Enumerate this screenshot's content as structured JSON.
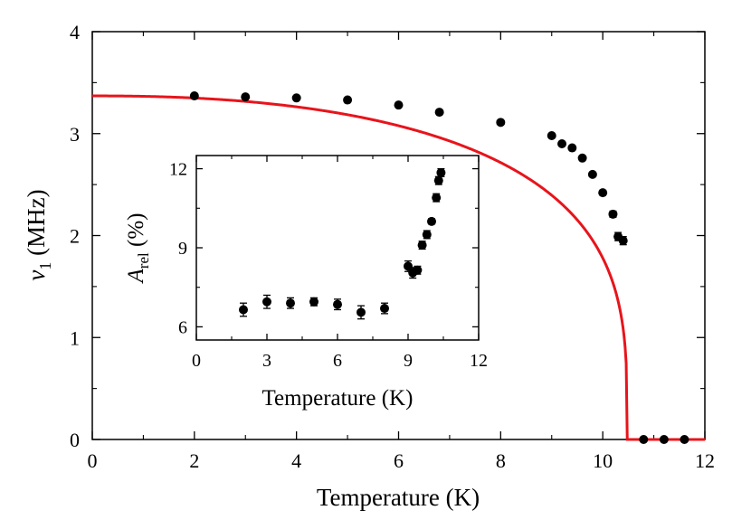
{
  "chart_data": [
    {
      "type": "scatter",
      "xlabel": "Temperature (K)",
      "ylabel_symbol": "ν",
      "ylabel_subscript": "1",
      "ylabel_unit": " (MHz)",
      "xlim": [
        0,
        12
      ],
      "ylim": [
        0,
        4
      ],
      "xticks": [
        0,
        2,
        4,
        6,
        8,
        10,
        12
      ],
      "yticks": [
        0,
        1,
        2,
        3,
        4
      ],
      "grid": false,
      "series": [
        {
          "type": "scatter",
          "color": "#000000",
          "x": [
            2.0,
            3.0,
            4.0,
            5.0,
            6.0,
            6.8,
            8.0,
            9.0,
            9.2,
            9.4,
            9.6,
            9.8,
            10.0,
            10.2,
            10.3,
            10.4,
            10.8,
            11.2,
            11.6
          ],
          "y": [
            3.37,
            3.36,
            3.35,
            3.33,
            3.28,
            3.21,
            3.11,
            2.98,
            2.9,
            2.86,
            2.76,
            2.6,
            2.42,
            2.21,
            1.99,
            1.95,
            0.0,
            0.0,
            0.0
          ],
          "yerr": [
            0.01,
            0.01,
            0.01,
            0.01,
            0.01,
            0.01,
            0.01,
            0.01,
            0.01,
            0.01,
            0.02,
            0.02,
            0.02,
            0.03,
            0.04,
            0.04,
            0.0,
            0.0,
            0.0
          ]
        },
        {
          "type": "line",
          "color": "#e8141b",
          "fit": {
            "nu0": 3.37,
            "Tc": 10.48,
            "alpha": 2.3,
            "beta": 0.28,
            "T_end": 12.0
          }
        }
      ]
    },
    {
      "type": "scatter",
      "inset": true,
      "xlabel": "Temperature (K)",
      "ylabel_symbol": "A",
      "ylabel_subscript": "rel",
      "ylabel_unit": " (%)",
      "xlim": [
        0,
        12
      ],
      "ylim": [
        5.5,
        12.5
      ],
      "xticks": [
        0,
        3,
        6,
        9,
        12
      ],
      "yticks": [
        6,
        9,
        12
      ],
      "grid": false,
      "series": [
        {
          "type": "scatter",
          "color": "#000000",
          "x": [
            2.0,
            3.0,
            4.0,
            5.0,
            6.0,
            7.0,
            8.0,
            9.0,
            9.2,
            9.4,
            9.6,
            9.8,
            10.0,
            10.2,
            10.3,
            10.4
          ],
          "y": [
            6.65,
            6.95,
            6.9,
            6.95,
            6.85,
            6.55,
            6.7,
            8.3,
            8.05,
            8.15,
            9.1,
            9.5,
            10.0,
            10.9,
            11.55,
            11.85
          ],
          "yerr": [
            0.25,
            0.25,
            0.2,
            0.15,
            0.2,
            0.25,
            0.2,
            0.2,
            0.2,
            0.15,
            0.15,
            0.15,
            0.1,
            0.15,
            0.15,
            0.15
          ]
        }
      ]
    }
  ]
}
